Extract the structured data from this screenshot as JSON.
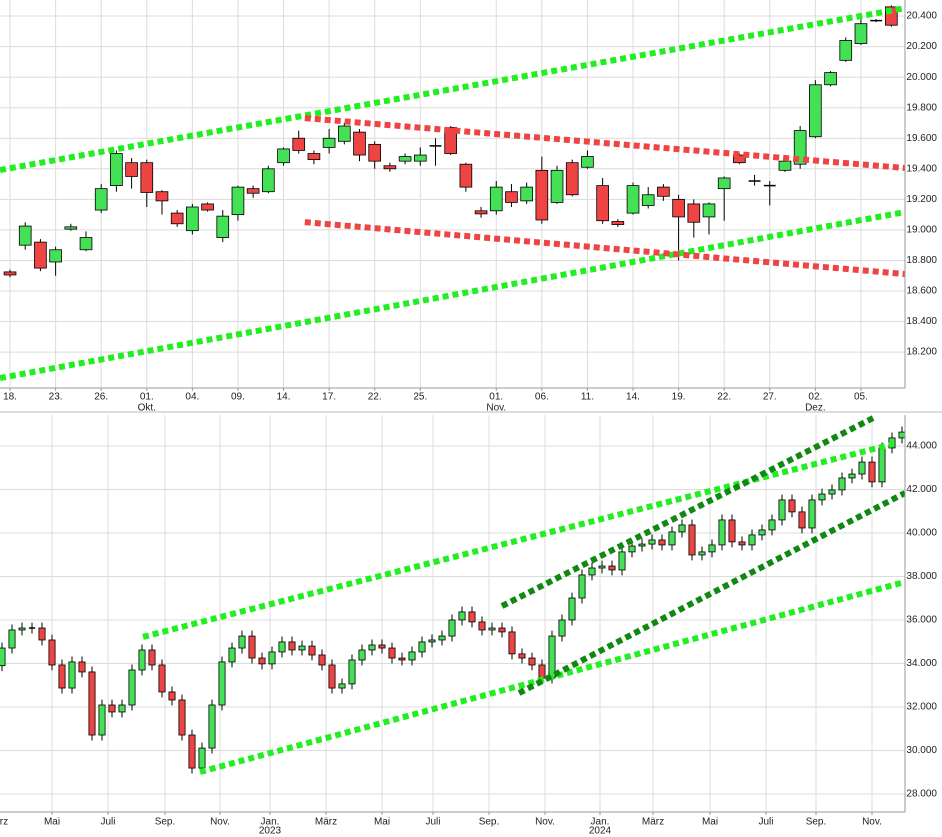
{
  "chart_data": [
    {
      "type": "candlestick",
      "open": [
        18725,
        18900,
        18920,
        18790,
        19005,
        18870,
        19130,
        19290,
        19440,
        19440,
        19250,
        19110,
        18995,
        19170,
        18950,
        19100,
        19270,
        19250,
        19440,
        19600,
        19500,
        19540,
        19580,
        19640,
        19560,
        19420,
        19450,
        19450,
        19550,
        19670,
        19430,
        19125,
        19125,
        19250,
        19190,
        19390,
        19180,
        19440,
        19410,
        19290,
        19055,
        19110,
        19160,
        19280,
        19200,
        19170,
        19085,
        19270,
        19490,
        19320,
        19290,
        19390,
        19430,
        19610,
        19950,
        20110,
        20220,
        20370,
        20460
      ],
      "high": [
        18740,
        19050,
        18940,
        18890,
        19040,
        18990,
        19300,
        19520,
        19470,
        19460,
        19260,
        19130,
        19170,
        19180,
        19130,
        19290,
        19290,
        19420,
        19540,
        19650,
        19520,
        19660,
        19700,
        19660,
        19580,
        19440,
        19500,
        19540,
        19600,
        19680,
        19440,
        19150,
        19320,
        19300,
        19310,
        19480,
        19420,
        19460,
        19520,
        19340,
        19070,
        19310,
        19280,
        19300,
        19230,
        19200,
        19180,
        19350,
        19500,
        19360,
        19320,
        19480,
        19680,
        19980,
        20040,
        20260,
        20380,
        20380,
        20470
      ],
      "low": [
        18690,
        18870,
        18730,
        18700,
        18995,
        18860,
        19110,
        19250,
        19270,
        19150,
        19100,
        19020,
        18970,
        19120,
        18920,
        19060,
        19210,
        19240,
        19420,
        19500,
        19430,
        19500,
        19560,
        19450,
        19400,
        19380,
        19430,
        19420,
        19420,
        19490,
        19250,
        19080,
        19100,
        19150,
        19170,
        19040,
        19170,
        19220,
        19400,
        19040,
        19020,
        19100,
        19140,
        19190,
        18800,
        18950,
        18970,
        19060,
        19430,
        19290,
        19160,
        19380,
        19400,
        19600,
        19940,
        20100,
        20210,
        20360,
        20330
      ],
      "close": [
        18705,
        19025,
        18750,
        18870,
        19020,
        18950,
        19270,
        19500,
        19350,
        19245,
        19190,
        19040,
        19150,
        19130,
        19090,
        19280,
        19240,
        19400,
        19530,
        19520,
        19460,
        19600,
        19680,
        19490,
        19450,
        19400,
        19480,
        19490,
        19550,
        19500,
        19280,
        19105,
        19280,
        19180,
        19280,
        19065,
        19390,
        19230,
        19480,
        19060,
        19035,
        19290,
        19230,
        19220,
        19085,
        19050,
        19170,
        19340,
        19440,
        19320,
        19290,
        19450,
        19650,
        19950,
        20030,
        20240,
        20350,
        20370,
        20340
      ],
      "up_color": "#44e055",
      "down_color": "#ee4444",
      "doji_color": "#000000",
      "xlim": [
        -0.66,
        58.9
      ],
      "ylim": [
        17965,
        20505
      ],
      "yticks": [
        {
          "value": 18200,
          "label": "18.200"
        },
        {
          "value": 18400,
          "label": "18.400"
        },
        {
          "value": 18600,
          "label": "18.600"
        },
        {
          "value": 18800,
          "label": "18.800"
        },
        {
          "value": 19000,
          "label": "19.000"
        },
        {
          "value": 19200,
          "label": "19.200"
        },
        {
          "value": 19400,
          "label": "19.400"
        },
        {
          "value": 19600,
          "label": "19.600"
        },
        {
          "value": 19800,
          "label": "19.800"
        },
        {
          "value": 20000,
          "label": "20.000"
        },
        {
          "value": 20200,
          "label": "20.200"
        },
        {
          "value": 20400,
          "label": "20.400"
        }
      ],
      "xticks": [
        {
          "value": 0,
          "label": "18."
        },
        {
          "value": 3,
          "label": "23."
        },
        {
          "value": 6,
          "label": "26."
        },
        {
          "value": 9,
          "label": "01."
        },
        {
          "value": 12,
          "label": "04."
        },
        {
          "value": 15,
          "label": "09."
        },
        {
          "value": 18,
          "label": "14."
        },
        {
          "value": 21,
          "label": "17."
        },
        {
          "value": 24,
          "label": "22."
        },
        {
          "value": 27,
          "label": "25."
        },
        {
          "value": 32,
          "label": "01."
        },
        {
          "value": 35,
          "label": "06."
        },
        {
          "value": 38,
          "label": "11."
        },
        {
          "value": 41,
          "label": "14."
        },
        {
          "value": 44,
          "label": "19."
        },
        {
          "value": 47,
          "label": "22."
        },
        {
          "value": 50,
          "label": "27."
        },
        {
          "value": 53,
          "label": "02."
        },
        {
          "value": 56,
          "label": "05."
        }
      ],
      "sub_ticks": [
        {
          "value": 9,
          "label": "Okt."
        },
        {
          "value": 32,
          "label": "Nov."
        },
        {
          "value": 53,
          "label": "Dez."
        }
      ],
      "grid": true,
      "trendlines": [
        {
          "color": "#22ee22",
          "x": [
            -0.66,
            58.9
          ],
          "y": [
            19392,
            20452
          ]
        },
        {
          "color": "#22ee22",
          "x": [
            -0.66,
            58.9
          ],
          "y": [
            18030,
            19117
          ]
        },
        {
          "color": "#ee4444",
          "x": [
            19.4,
            58.9
          ],
          "y": [
            19732,
            19405
          ]
        },
        {
          "color": "#ee4444",
          "x": [
            19.4,
            58.9
          ],
          "y": [
            19051,
            18711
          ]
        }
      ]
    },
    {
      "type": "candlestick",
      "open": [
        33900,
        34710,
        35540,
        35630,
        35630,
        35080,
        33930,
        32870,
        34070,
        33610,
        30710,
        32090,
        31770,
        32090,
        33700,
        34620,
        33930,
        32690,
        32320,
        30710,
        29190,
        30110,
        32090,
        34070,
        34710,
        35260,
        34250,
        33980,
        34530,
        34990,
        34620,
        34800,
        34390,
        33930,
        32870,
        33060,
        34160,
        34620,
        34850,
        34710,
        34250,
        34160,
        34530,
        34990,
        35080,
        35260,
        36000,
        36370,
        35910,
        35540,
        35630,
        35450,
        34440,
        34250,
        33930,
        33330,
        35260,
        36000,
        37010,
        38070,
        38390,
        38480,
        38300,
        39130,
        39400,
        39490,
        39680,
        39450,
        40050,
        40370,
        38990,
        39130,
        39450,
        40600,
        39590,
        39450,
        39910,
        40140,
        40600,
        41520,
        40970,
        40230,
        41520,
        41790,
        41980,
        42530,
        42710,
        43260,
        42350,
        43910,
        44370
      ],
      "high": [
        34960,
        35790,
        35880,
        35880,
        35880,
        35330,
        34180,
        34320,
        34320,
        33860,
        32340,
        32340,
        32340,
        33950,
        34870,
        34870,
        34180,
        32940,
        32570,
        30960,
        30360,
        32340,
        34320,
        34960,
        35510,
        35510,
        34500,
        34780,
        35240,
        35240,
        35050,
        35050,
        34640,
        34180,
        33310,
        34410,
        34870,
        35100,
        35100,
        34960,
        34500,
        34780,
        35240,
        35330,
        35510,
        36250,
        36620,
        36620,
        36160,
        35880,
        35880,
        35700,
        34690,
        34500,
        34180,
        35510,
        36250,
        37260,
        38320,
        38640,
        38730,
        38730,
        39380,
        39650,
        39740,
        39930,
        39930,
        40300,
        40620,
        40620,
        39380,
        39700,
        40850,
        40850,
        39840,
        40160,
        40390,
        40850,
        41770,
        41770,
        41220,
        41770,
        42040,
        42230,
        42780,
        42960,
        43510,
        43510,
        44160,
        44620,
        44890
      ],
      "low": [
        33650,
        34460,
        35290,
        35380,
        34830,
        33680,
        32620,
        32620,
        33360,
        30460,
        30460,
        31520,
        31520,
        31840,
        33450,
        33680,
        32440,
        32070,
        30460,
        28940,
        28940,
        29860,
        31840,
        33820,
        34460,
        34000,
        33730,
        33730,
        34280,
        34370,
        34370,
        34140,
        33680,
        32620,
        32620,
        32810,
        33910,
        34370,
        34460,
        34000,
        33910,
        33910,
        34280,
        34740,
        34830,
        35010,
        35750,
        35660,
        35290,
        35290,
        35200,
        34190,
        34000,
        33680,
        33080,
        33080,
        35010,
        35750,
        36760,
        37820,
        38140,
        38050,
        38050,
        38880,
        39150,
        39240,
        39200,
        39200,
        39800,
        38740,
        38740,
        38880,
        39200,
        39340,
        39200,
        39200,
        39660,
        39890,
        40350,
        40720,
        39980,
        39980,
        41270,
        41540,
        41730,
        42280,
        42460,
        42100,
        42100,
        43660,
        44120
      ],
      "close": [
        34710,
        35540,
        35630,
        35630,
        35080,
        33930,
        32870,
        34070,
        33610,
        30710,
        32090,
        31770,
        32090,
        33700,
        34620,
        33930,
        32690,
        32320,
        30710,
        29190,
        30110,
        32090,
        34070,
        34710,
        35260,
        34250,
        33980,
        34530,
        34990,
        34620,
        34800,
        34390,
        33930,
        32870,
        33060,
        34160,
        34620,
        34850,
        34710,
        34250,
        34160,
        34530,
        34990,
        35080,
        35260,
        36000,
        36370,
        35910,
        35540,
        35630,
        35450,
        34440,
        34250,
        33930,
        33330,
        35260,
        36000,
        37010,
        38070,
        38390,
        38480,
        38300,
        39130,
        39400,
        39490,
        39680,
        39450,
        40050,
        40370,
        38990,
        39130,
        39450,
        40600,
        39590,
        39450,
        39910,
        40140,
        40600,
        41520,
        40970,
        40230,
        41520,
        41790,
        41980,
        42530,
        42710,
        43260,
        42350,
        43910,
        44370,
        44640
      ],
      "up_color": "#44e055",
      "down_color": "#ee4444",
      "doji_color": "#000000",
      "xlim": [
        -0.2,
        90.3
      ],
      "ylim": [
        27170,
        45425
      ],
      "yticks": [
        {
          "value": 28000,
          "label": "28.000"
        },
        {
          "value": 30000,
          "label": "30.000"
        },
        {
          "value": 32000,
          "label": "32.000"
        },
        {
          "value": 34000,
          "label": "34.000"
        },
        {
          "value": 36000,
          "label": "36.000"
        },
        {
          "value": 38000,
          "label": "38.000"
        },
        {
          "value": 40000,
          "label": "40.000"
        },
        {
          "value": 42000,
          "label": "42.000"
        },
        {
          "value": 44000,
          "label": "44.000"
        }
      ],
      "xticks": [
        {
          "value": -0.5,
          "label": "März"
        },
        {
          "value": 5,
          "label": "Mai"
        },
        {
          "value": 10.6,
          "label": "Juli"
        },
        {
          "value": 16.3,
          "label": "Sep."
        },
        {
          "value": 21.8,
          "label": "Nov."
        },
        {
          "value": 26.8,
          "label": "Jan."
        },
        {
          "value": 32.4,
          "label": "März"
        },
        {
          "value": 38,
          "label": "Mai"
        },
        {
          "value": 43.1,
          "label": "Juli"
        },
        {
          "value": 48.7,
          "label": "Sep."
        },
        {
          "value": 54.3,
          "label": "Nov."
        },
        {
          "value": 59.8,
          "label": "Jan."
        },
        {
          "value": 65.1,
          "label": "März"
        },
        {
          "value": 70.8,
          "label": "Mai"
        },
        {
          "value": 76.4,
          "label": "Juli"
        },
        {
          "value": 81.4,
          "label": "Sep."
        },
        {
          "value": 87,
          "label": "Nov."
        }
      ],
      "sub_ticks": [
        {
          "value": 26.8,
          "label": "2023"
        },
        {
          "value": 59.8,
          "label": "2024"
        }
      ],
      "grid": true,
      "trendlines": [
        {
          "color": "#22ee22",
          "x": [
            14.1,
            89.1
          ],
          "y": [
            35220,
            44090
          ]
        },
        {
          "color": "#22ee22",
          "x": [
            19.8,
            90.3
          ],
          "y": [
            29010,
            37750
          ]
        },
        {
          "color": "#118811",
          "x": [
            50,
            87.3
          ],
          "y": [
            36640,
            45330
          ]
        },
        {
          "color": "#118811",
          "x": [
            51.7,
            90.3
          ],
          "y": [
            32640,
            41840
          ]
        }
      ]
    }
  ]
}
